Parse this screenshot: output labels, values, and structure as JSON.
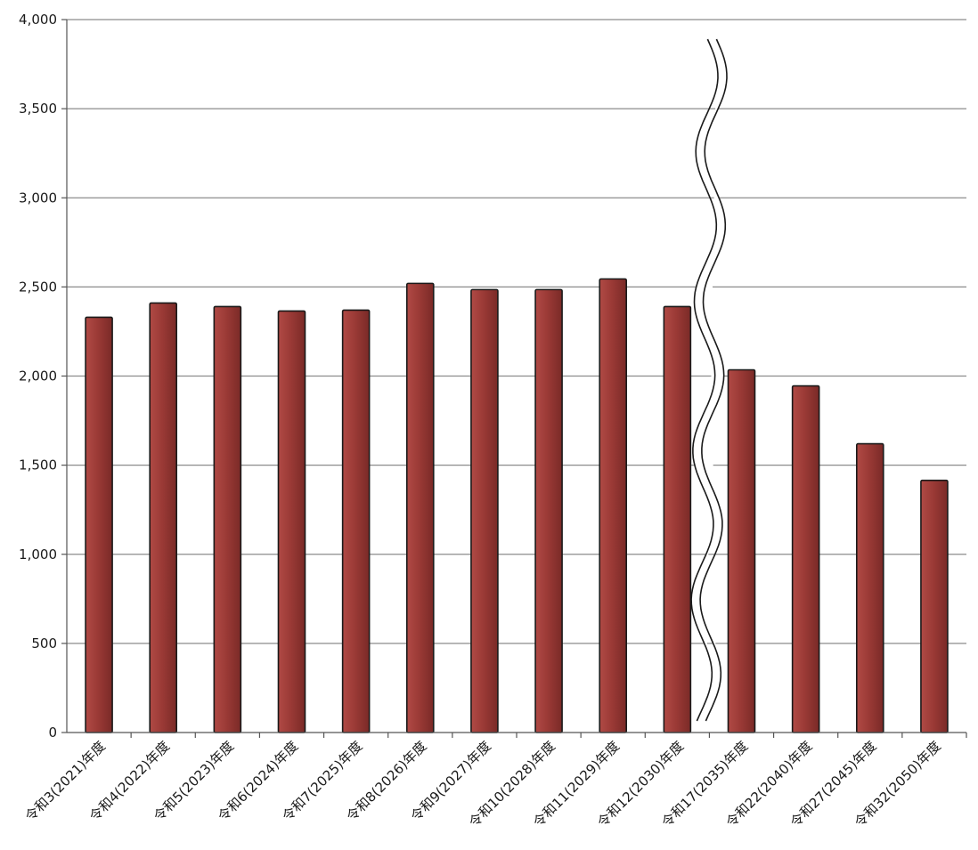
{
  "chart_data": {
    "type": "bar",
    "title": "",
    "xlabel": "",
    "ylabel": "",
    "ylim": [
      0,
      4000
    ],
    "yticks": [
      0,
      500,
      1000,
      1500,
      2000,
      2500,
      3000,
      3500,
      4000
    ],
    "ytick_labels": [
      "0",
      "500",
      "1,000",
      "1,500",
      "2,000",
      "2,500",
      "3,000",
      "3,500",
      "4,000"
    ],
    "grid": true,
    "legend": "none",
    "axis_break_after_category": "令和12(2030)年度",
    "bar_color": "#9b3a36",
    "categories": [
      "令和3(2021)年度",
      "令和4(2022)年度",
      "令和5(2023)年度",
      "令和6(2024)年度",
      "令和7(2025)年度",
      "令和8(2026)年度",
      "令和9(2027)年度",
      "令和10(2028)年度",
      "令和11(2029)年度",
      "令和12(2030)年度",
      "令和17(2035)年度",
      "令和22(2040)年度",
      "令和27(2045)年度",
      "令和32(2050)年度"
    ],
    "values": [
      2330,
      2410,
      2390,
      2365,
      2370,
      2520,
      2485,
      2485,
      2545,
      2390,
      2035,
      1945,
      1620,
      1415
    ]
  }
}
